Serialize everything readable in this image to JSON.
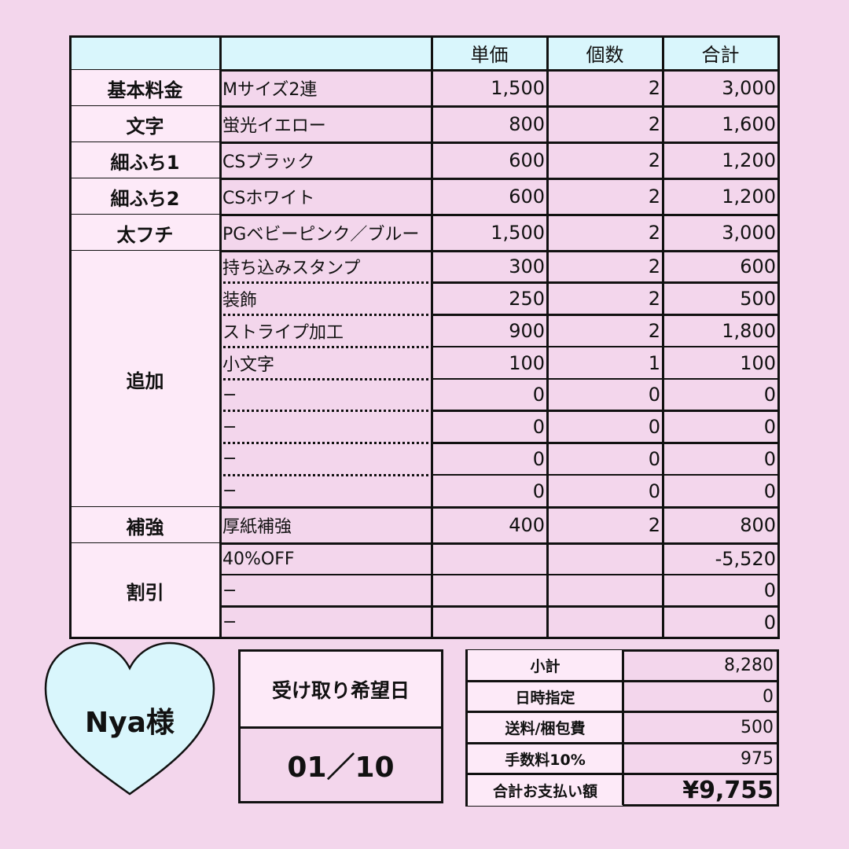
{
  "colors": {
    "frame": "#f3d6ec",
    "header_bg": "#d9f6fc",
    "label_bg": "#fdeaf8",
    "heart_fill": "#d9f6fc"
  },
  "table": {
    "headers": [
      "",
      "",
      "単価",
      "個数",
      "合計"
    ],
    "groups": [
      {
        "label": "基本料金",
        "rows": [
          [
            "Mサイズ2連",
            "1,500",
            "2",
            "3,000"
          ]
        ]
      },
      {
        "label": "文字",
        "rows": [
          [
            "蛍光イエロー",
            "800",
            "2",
            "1,600"
          ]
        ]
      },
      {
        "label": "細ふち1",
        "rows": [
          [
            "CSブラック",
            "600",
            "2",
            "1,200"
          ]
        ]
      },
      {
        "label": "細ふち2",
        "rows": [
          [
            "CSホワイト",
            "600",
            "2",
            "1,200"
          ]
        ]
      },
      {
        "label": "太フチ",
        "rows": [
          [
            "PGベビーピンク／ブルー",
            "1,500",
            "2",
            "3,000"
          ]
        ]
      },
      {
        "label": "追加",
        "dotted": true,
        "rows": [
          [
            "持ち込みスタンプ",
            "300",
            "2",
            "600"
          ],
          [
            "装飾",
            "250",
            "2",
            "500"
          ],
          [
            "ストライプ加工",
            "900",
            "2",
            "1,800"
          ],
          [
            "小文字",
            "100",
            "1",
            "100"
          ],
          [
            "−",
            "0",
            "0",
            "0"
          ],
          [
            "−",
            "0",
            "0",
            "0"
          ],
          [
            "−",
            "0",
            "0",
            "0"
          ],
          [
            "−",
            "0",
            "0",
            "0"
          ]
        ]
      },
      {
        "label": "補強",
        "rows": [
          [
            "厚紙補強",
            "400",
            "2",
            "800"
          ]
        ]
      },
      {
        "label": "割引",
        "rows": [
          [
            "40%OFF",
            "",
            "",
            "-5,520"
          ],
          [
            "−",
            "",
            "",
            "0"
          ],
          [
            "−",
            "",
            "",
            "0"
          ]
        ]
      }
    ]
  },
  "customer": {
    "name": "Nya様",
    "icon": "heart-icon"
  },
  "pickup": {
    "label": "受け取り希望日",
    "date": "01／10"
  },
  "summary": [
    {
      "label": "小計",
      "value": "8,280"
    },
    {
      "label": "日時指定",
      "value": "0"
    },
    {
      "label": "送料/梱包費",
      "value": "500"
    },
    {
      "label": "手数料10%",
      "value": "975"
    },
    {
      "label": "合計お支払い額",
      "value": "¥9,755"
    }
  ]
}
